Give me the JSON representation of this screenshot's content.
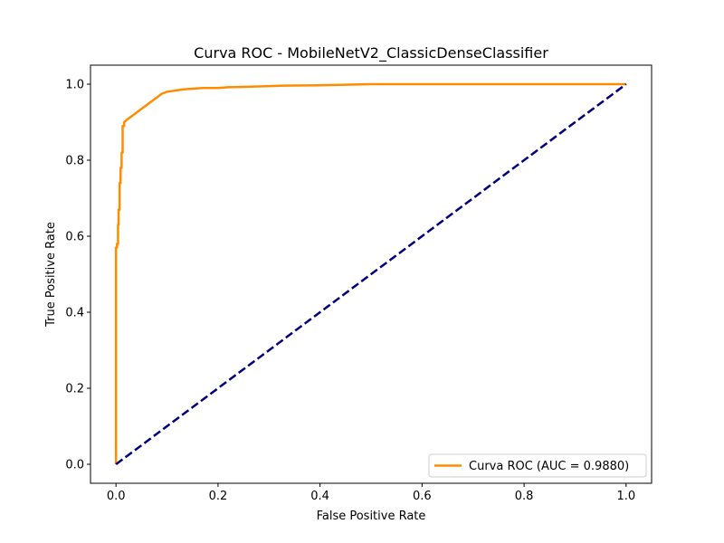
{
  "chart_data": {
    "type": "line",
    "title": "Curva ROC - MobileNetV2_ClassicDenseClassifier",
    "xlabel": "False Positive Rate",
    "ylabel": "True Positive Rate",
    "xlim": [
      -0.05,
      1.05
    ],
    "ylim": [
      -0.05,
      1.05
    ],
    "xticks": [
      0.0,
      0.2,
      0.4,
      0.6,
      0.8,
      1.0
    ],
    "yticks": [
      0.0,
      0.2,
      0.4,
      0.6,
      0.8,
      1.0
    ],
    "xtick_labels": [
      "0.0",
      "0.2",
      "0.4",
      "0.6",
      "0.8",
      "1.0"
    ],
    "ytick_labels": [
      "0.0",
      "0.2",
      "0.4",
      "0.6",
      "0.8",
      "1.0"
    ],
    "grid": false,
    "legend_position": "lower-right",
    "series": [
      {
        "name": "Curva ROC (AUC = 0.9880)",
        "color": "#ff8c00",
        "style": "solid",
        "x": [
          0.0,
          0.0,
          0.002,
          0.002,
          0.004,
          0.004,
          0.005,
          0.005,
          0.007,
          0.007,
          0.009,
          0.009,
          0.011,
          0.011,
          0.013,
          0.013,
          0.016,
          0.016,
          0.02,
          0.025,
          0.03,
          0.035,
          0.04,
          0.045,
          0.05,
          0.055,
          0.06,
          0.065,
          0.07,
          0.075,
          0.08,
          0.085,
          0.09,
          0.1,
          0.11,
          0.12,
          0.13,
          0.15,
          0.17,
          0.2,
          0.22,
          0.25,
          0.28,
          0.3,
          0.33,
          0.4,
          0.5,
          0.6,
          0.8,
          1.0
        ],
        "y": [
          0.0,
          0.57,
          0.57,
          0.58,
          0.58,
          0.63,
          0.63,
          0.67,
          0.67,
          0.74,
          0.74,
          0.78,
          0.78,
          0.82,
          0.82,
          0.89,
          0.89,
          0.9,
          0.905,
          0.91,
          0.915,
          0.92,
          0.925,
          0.93,
          0.935,
          0.94,
          0.945,
          0.95,
          0.955,
          0.96,
          0.965,
          0.97,
          0.975,
          0.98,
          0.982,
          0.984,
          0.986,
          0.988,
          0.99,
          0.99,
          0.992,
          0.993,
          0.994,
          0.995,
          0.996,
          0.997,
          1.0,
          1.0,
          1.0,
          1.0
        ]
      },
      {
        "name": "",
        "color": "#000080",
        "style": "dashed",
        "x": [
          0.0,
          1.0
        ],
        "y": [
          0.0,
          1.0
        ]
      }
    ]
  }
}
